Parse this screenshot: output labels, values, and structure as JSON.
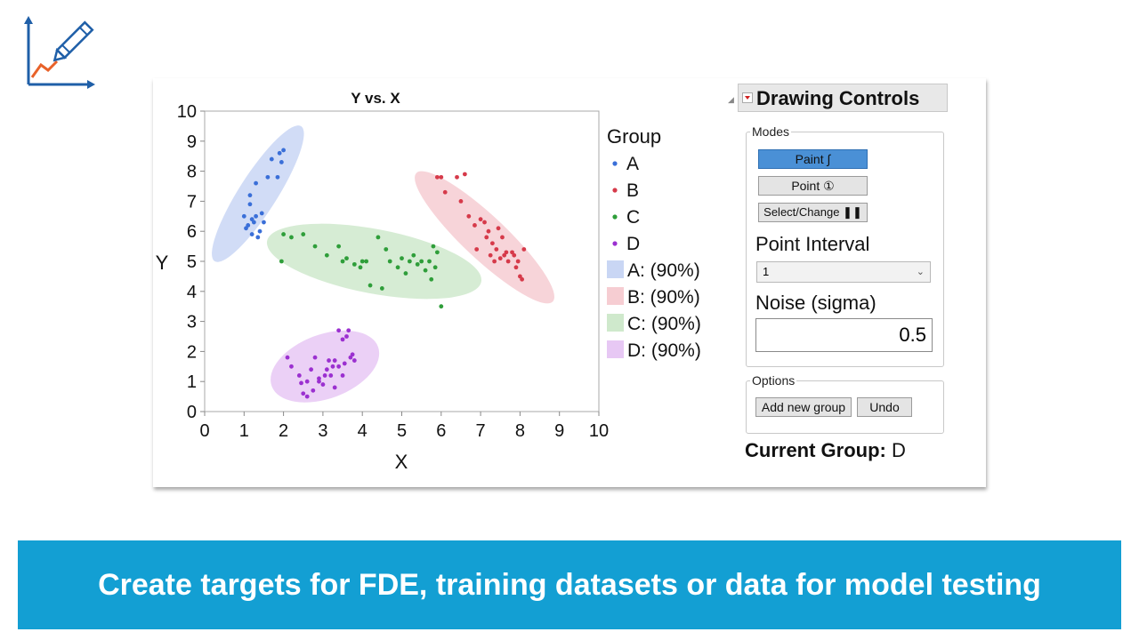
{
  "chart_data": {
    "type": "scatter",
    "title": "Y vs. X",
    "xlabel": "X",
    "ylabel": "Y",
    "xlim": [
      0,
      10
    ],
    "ylim": [
      0,
      10
    ],
    "xticks": [
      0,
      1,
      2,
      3,
      4,
      5,
      6,
      7,
      8,
      9,
      10
    ],
    "yticks": [
      0,
      1,
      2,
      3,
      4,
      5,
      6,
      7,
      8,
      9,
      10
    ],
    "grid": false,
    "legend_title": "Group",
    "legend_position": "right",
    "series": [
      {
        "name": "A",
        "color": "#3a6fd8",
        "x": [
          1.1,
          1.2,
          1.3,
          1.25,
          1.4,
          1.5,
          1.45,
          1.35,
          1.0,
          1.15,
          1.05,
          1.3,
          1.7,
          1.9,
          2.0,
          1.85,
          1.95,
          1.2,
          1.6,
          1.15
        ],
        "y": [
          6.2,
          6.4,
          6.5,
          6.3,
          6.0,
          6.3,
          6.6,
          5.8,
          6.5,
          7.2,
          6.1,
          7.6,
          8.4,
          8.6,
          8.7,
          7.8,
          8.3,
          5.9,
          7.8,
          6.9
        ]
      },
      {
        "name": "B",
        "color": "#d63a4a",
        "x": [
          5.9,
          6.0,
          6.1,
          6.4,
          6.6,
          6.5,
          6.7,
          6.9,
          7.0,
          7.1,
          7.2,
          7.3,
          7.4,
          7.5,
          7.6,
          7.7,
          7.8,
          7.9,
          8.0,
          8.1,
          7.55,
          7.65,
          7.85,
          8.05,
          7.35,
          7.45,
          7.95,
          6.85,
          7.15,
          7.25
        ],
        "y": [
          7.8,
          7.8,
          7.3,
          7.8,
          7.9,
          7.0,
          6.5,
          5.4,
          6.4,
          6.3,
          6.0,
          5.6,
          5.4,
          5.1,
          5.2,
          5.0,
          5.3,
          4.8,
          4.5,
          5.4,
          5.8,
          5.3,
          5.2,
          4.4,
          5.0,
          6.1,
          5.0,
          6.2,
          5.8,
          5.2
        ]
      },
      {
        "name": "C",
        "color": "#2f9e3a",
        "x": [
          1.95,
          2.0,
          2.2,
          2.5,
          2.8,
          3.1,
          3.4,
          3.5,
          3.6,
          3.8,
          4.0,
          4.2,
          4.4,
          4.5,
          4.7,
          4.9,
          5.0,
          5.1,
          5.2,
          5.3,
          5.4,
          5.5,
          5.6,
          5.7,
          5.75,
          5.8,
          5.85,
          5.9,
          6.0,
          4.1,
          4.6,
          3.95
        ],
        "y": [
          5.0,
          5.9,
          5.8,
          5.9,
          5.5,
          5.2,
          5.5,
          5.0,
          5.1,
          4.9,
          5.0,
          4.2,
          5.8,
          4.1,
          5.0,
          4.8,
          5.1,
          4.6,
          5.0,
          5.2,
          4.9,
          5.0,
          4.7,
          5.0,
          4.4,
          5.5,
          4.8,
          5.3,
          3.5,
          5.0,
          5.4,
          4.8
        ]
      },
      {
        "name": "D",
        "color": "#9b30d0",
        "x": [
          2.1,
          2.2,
          2.4,
          2.5,
          2.6,
          2.7,
          2.8,
          2.9,
          3.0,
          3.1,
          3.2,
          3.3,
          3.4,
          3.5,
          3.6,
          3.7,
          3.8,
          3.5,
          3.4,
          3.3,
          2.6,
          2.9,
          3.05,
          3.25,
          3.55,
          3.75,
          2.45,
          3.15,
          3.65,
          2.75
        ],
        "y": [
          1.8,
          1.5,
          1.2,
          0.6,
          0.5,
          1.4,
          1.8,
          1.0,
          0.9,
          1.4,
          1.2,
          1.7,
          1.5,
          2.4,
          2.5,
          1.8,
          1.7,
          1.2,
          2.7,
          0.8,
          1.0,
          1.1,
          1.2,
          1.5,
          1.6,
          1.9,
          0.95,
          1.7,
          2.7,
          0.7
        ]
      }
    ],
    "ellipses": [
      {
        "name": "A: (90%)",
        "color": "#c9d6f4",
        "cx": 1.35,
        "cy": 7.25,
        "rx": 2.5,
        "ry": 0.5,
        "angle": 64
      },
      {
        "name": "B: (90%)",
        "color": "#f6cdd2",
        "cx": 7.1,
        "cy": 5.8,
        "rx": 2.75,
        "ry": 0.6,
        "angle": -51
      },
      {
        "name": "C: (90%)",
        "color": "#cfe9cc",
        "cx": 4.3,
        "cy": 5.0,
        "rx": 2.8,
        "ry": 1.05,
        "angle": -14
      },
      {
        "name": "D: (90%)",
        "color": "#e7c8f4",
        "cx": 3.05,
        "cy": 1.5,
        "rx": 1.5,
        "ry": 1.0,
        "angle": 26
      }
    ]
  },
  "panel": {
    "title": "Drawing Controls",
    "modes_label": "Modes",
    "mode_buttons": [
      "Paint ∫",
      "Point ①",
      "Select/Change ❚❚"
    ],
    "active_mode": 0,
    "point_interval_label": "Point Interval",
    "point_interval_value": "1",
    "noise_label": "Noise (sigma)",
    "noise_value": "0.5",
    "options_label": "Options",
    "add_group_label": "Add new group",
    "undo_label": "Undo",
    "current_group_label": "Current Group:",
    "current_group_value": "D"
  },
  "banner": {
    "text": "Create targets for FDE, training datasets or data for model testing"
  }
}
